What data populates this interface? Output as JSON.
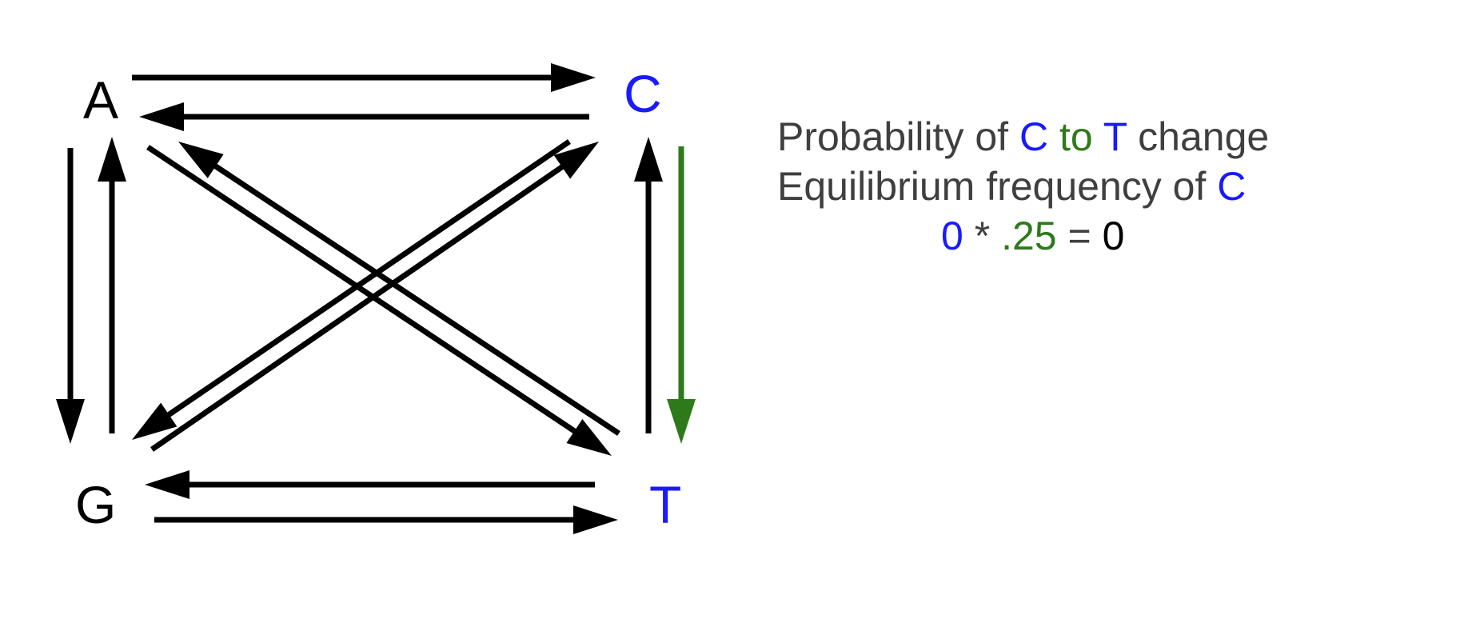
{
  "colors": {
    "black": "#000000",
    "blue": "#1a1aff",
    "green": "#2e7a1a",
    "text_gray": "#3f3f3f"
  },
  "nodes": {
    "a": {
      "label": "A",
      "color": "#000000"
    },
    "c": {
      "label": "C",
      "color": "#1a1aff"
    },
    "g": {
      "label": "G",
      "color": "#000000"
    },
    "t": {
      "label": "T",
      "color": "#1a1aff"
    }
  },
  "arrows": [
    {
      "from": "A",
      "to": "C",
      "color": "#000000"
    },
    {
      "from": "C",
      "to": "A",
      "color": "#000000"
    },
    {
      "from": "A",
      "to": "G",
      "color": "#000000"
    },
    {
      "from": "G",
      "to": "A",
      "color": "#000000"
    },
    {
      "from": "T",
      "to": "C",
      "color": "#000000"
    },
    {
      "from": "C",
      "to": "T",
      "color": "#2e7a1a",
      "highlighted": true
    },
    {
      "from": "G",
      "to": "T",
      "color": "#000000"
    },
    {
      "from": "T",
      "to": "G",
      "color": "#000000"
    },
    {
      "from": "A",
      "to": "T",
      "color": "#000000"
    },
    {
      "from": "T",
      "to": "A",
      "color": "#000000"
    },
    {
      "from": "C",
      "to": "G",
      "color": "#000000"
    },
    {
      "from": "G",
      "to": "C",
      "color": "#000000"
    }
  ],
  "equation": {
    "line1": {
      "prefix": "Probability of ",
      "from": "C",
      "mid": " to ",
      "to": "T",
      "suffix": " change"
    },
    "line2": {
      "prefix": "Equilibrium frequency of ",
      "base": "C"
    },
    "line3": {
      "probability": "0",
      "times": " * ",
      "frequency": ".25",
      "equals": " = ",
      "result": "0"
    }
  }
}
